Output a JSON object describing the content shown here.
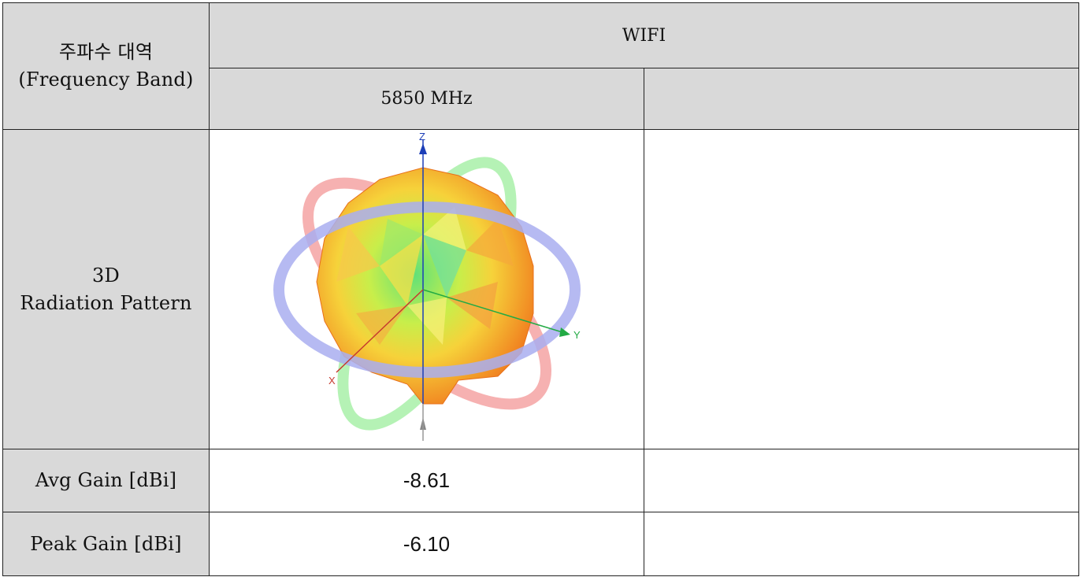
{
  "table": {
    "band_label_ko": "주파수 대역",
    "band_label_en": "(Frequency Band)",
    "band_name": "WIFI",
    "frequency": "5850 MHz",
    "extra_frequency": "",
    "pattern_label_line1": "3D",
    "pattern_label_line2": "Radiation Pattern",
    "avg_gain_label": "Avg Gain [dBi]",
    "avg_gain_value": "-8.61",
    "avg_gain_extra": "",
    "peak_gain_label": "Peak Gain [dBi]",
    "peak_gain_value": "-6.10",
    "peak_gain_extra": ""
  },
  "pattern": {
    "axis_z": "Z",
    "axis_y": "Y",
    "axis_x": "X",
    "colors": {
      "ring_red": "#f4a3a3",
      "ring_blue": "#a9aef0",
      "ring_green": "#a8f0a8",
      "body_outer": "#f07b1e",
      "body_mid": "#f6d23a",
      "body_inner": "#5fe07a",
      "axis_z": "#1d3fb8",
      "axis_y": "#22aa44",
      "axis_x": "#c63a2f"
    }
  }
}
